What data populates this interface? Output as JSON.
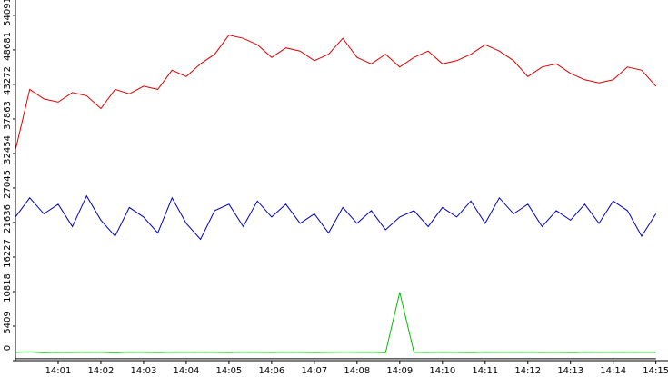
{
  "chart_data": {
    "type": "line",
    "x": [
      "14:00:00",
      "14:00:20",
      "14:00:40",
      "14:01:00",
      "14:01:20",
      "14:01:40",
      "14:02:00",
      "14:02:20",
      "14:02:40",
      "14:03:00",
      "14:03:20",
      "14:03:40",
      "14:04:00",
      "14:04:20",
      "14:04:40",
      "14:05:00",
      "14:05:20",
      "14:05:40",
      "14:06:00",
      "14:06:20",
      "14:06:40",
      "14:07:00",
      "14:07:20",
      "14:07:40",
      "14:08:00",
      "14:08:20",
      "14:08:40",
      "14:09:00",
      "14:09:20",
      "14:09:40",
      "14:10:00",
      "14:10:20",
      "14:10:40",
      "14:11:00",
      "14:11:20",
      "14:11:40",
      "14:12:00",
      "14:12:20",
      "14:12:40",
      "14:13:00",
      "14:13:20",
      "14:13:40",
      "14:14:00",
      "14:14:20",
      "14:14:40",
      "14:15:00"
    ],
    "series": [
      {
        "color": "#e00000",
        "values": [
          33000,
          42500,
          41000,
          40500,
          42000,
          41500,
          39500,
          42500,
          41800,
          43000,
          42500,
          45500,
          44500,
          46500,
          48000,
          51000,
          50500,
          49500,
          47500,
          49000,
          48500,
          47000,
          48000,
          50500,
          47500,
          46500,
          48000,
          46000,
          47500,
          48500,
          46500,
          47000,
          48000,
          49500,
          48500,
          47000,
          44500,
          46000,
          46500,
          45000,
          44000,
          43500,
          44000,
          46000,
          45500,
          43000
        ]
      },
      {
        "color": "#0000c0",
        "values": [
          22500,
          25500,
          23000,
          24500,
          21000,
          25800,
          22000,
          19500,
          24000,
          22500,
          20000,
          25500,
          21500,
          19000,
          23500,
          24500,
          21000,
          25000,
          22500,
          24500,
          21500,
          23000,
          20000,
          24000,
          21500,
          23500,
          20500,
          22500,
          23500,
          21000,
          24000,
          22500,
          25000,
          21500,
          25500,
          23000,
          24500,
          21000,
          23500,
          22000,
          24500,
          21500,
          25000,
          23500,
          19500,
          23000
        ]
      },
      {
        "color": "#00c000",
        "values": [
          1300,
          1350,
          1250,
          1300,
          1280,
          1320,
          1300,
          1250,
          1330,
          1300,
          1270,
          1310,
          1290,
          1320,
          1300,
          1260,
          1310,
          1300,
          1280,
          1330,
          1300,
          1270,
          1300,
          1320,
          1290,
          1310,
          1250,
          10700,
          1300,
          1280,
          1320,
          1300,
          1260,
          1310,
          1290,
          1300,
          1330,
          1280,
          1300,
          1270,
          1310,
          1300,
          1290,
          1320,
          1300,
          1300
        ]
      },
      {
        "color": "#000000",
        "values": [
          300,
          300,
          300,
          300,
          300,
          300,
          300,
          300,
          300,
          300,
          300,
          300,
          300,
          300,
          300,
          300,
          300,
          300,
          300,
          300,
          300,
          300,
          300,
          300,
          300,
          300,
          300,
          300,
          300,
          300,
          300,
          300,
          300,
          300,
          300,
          300,
          300,
          300,
          300,
          300,
          300,
          300,
          300,
          300,
          300,
          300
        ]
      }
    ],
    "xlim": [
      "14:00:00",
      "14:15:17"
    ],
    "xticks": [
      {
        "value": "14:01:00",
        "label": "14:01"
      },
      {
        "value": "14:02:00",
        "label": "14:02"
      },
      {
        "value": "14:03:00",
        "label": "14:03"
      },
      {
        "value": "14:04:00",
        "label": "14:04"
      },
      {
        "value": "14:05:00",
        "label": "14:05"
      },
      {
        "value": "14:06:00",
        "label": "14:06"
      },
      {
        "value": "14:07:00",
        "label": "14:07"
      },
      {
        "value": "14:08:00",
        "label": "14:08"
      },
      {
        "value": "14:09:00",
        "label": "14:09"
      },
      {
        "value": "14:10:00",
        "label": "14:10"
      },
      {
        "value": "14:11:00",
        "label": "14:11"
      },
      {
        "value": "14:12:00",
        "label": "14:12"
      },
      {
        "value": "14:13:00",
        "label": "14:13"
      },
      {
        "value": "14:14:00",
        "label": "14:14"
      },
      {
        "value": "14:15:00",
        "label": "14:15"
      }
    ],
    "ylim": [
      0,
      56500
    ],
    "yticks": [
      0,
      5409,
      10818,
      16227,
      21636,
      27045,
      32454,
      37863,
      43272,
      48681,
      54091
    ]
  }
}
